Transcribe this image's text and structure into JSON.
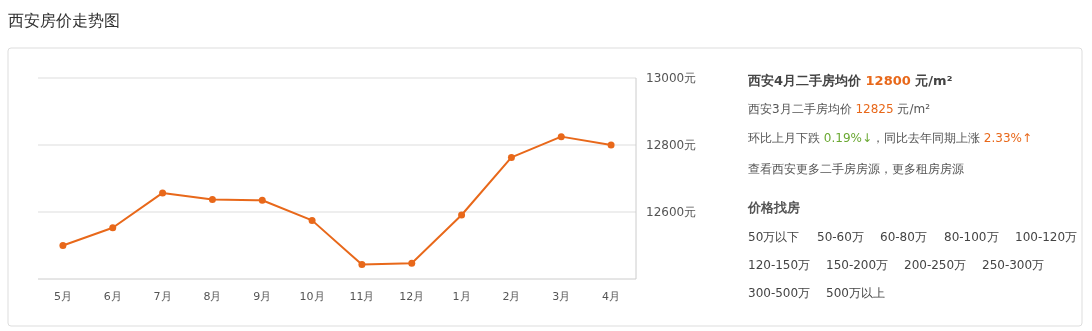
{
  "chart_data": [
    {
      "type": "line",
      "title": "西安房价走势图",
      "categories": [
        "5月",
        "6月",
        "7月",
        "8月",
        "9月",
        "10月",
        "11月",
        "12月",
        "1月",
        "2月",
        "3月",
        "4月"
      ],
      "series": [
        {
          "color": "#e8681a",
          "values": [
            12500,
            12553,
            12657,
            12637,
            12635,
            12575,
            12443,
            12447,
            12591,
            12763,
            12825,
            12800
          ]
        }
      ],
      "ylim": [
        12400,
        13000
      ],
      "yticks": [
        {
          "value": 12600,
          "label": "12600元"
        },
        {
          "value": 12800,
          "label": "12800元"
        },
        {
          "value": 13000,
          "label": "13000元"
        }
      ],
      "grid": "y",
      "marker": "circle",
      "line_style": "solid"
    },
    {
      "type": "other",
      "title": "西安4月二手房均价 12800 元/m²",
      "annotations": [
        "西安3月二手房均价 12825 元/m²",
        "环比上月下跌 0.19%↓，同比去年同期上涨 2.33%↑",
        "查看西安更多二手房房源，更多租房房源",
        "价格找房",
        "50万以下",
        "50-60万",
        "60-80万",
        "80-100万",
        "100-120万",
        "120-150万",
        "150-200万",
        "200-250万",
        "250-300万",
        "300-500万",
        "500万以上"
      ]
    }
  ]
}
